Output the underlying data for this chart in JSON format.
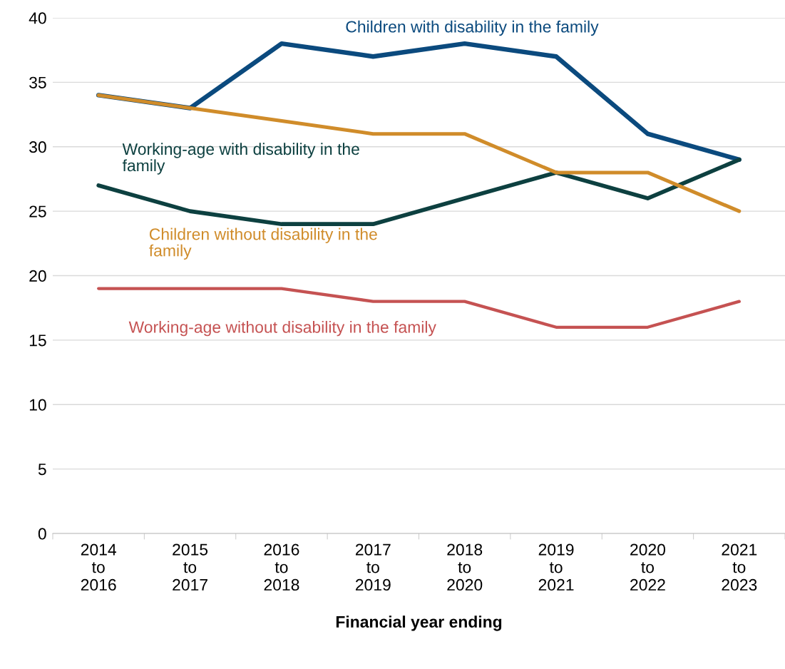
{
  "chart_data": {
    "type": "line",
    "xlabel": "Financial year ending",
    "categories": [
      "2014\nto\n2016",
      "2015\nto\n2017",
      "2016\nto\n2018",
      "2017\nto\n2019",
      "2018\nto\n2020",
      "2019\nto\n2021",
      "2020\nto\n2022",
      "2021\nto\n2023"
    ],
    "series": [
      {
        "name": "Children with disability in the family",
        "color": "#0b4a7e",
        "values": [
          34,
          33,
          38,
          37,
          38,
          37,
          31,
          29
        ]
      },
      {
        "name": "Working-age with disability in the family",
        "color": "#0d4040",
        "values": [
          27,
          25,
          24,
          24,
          26,
          28,
          26,
          29
        ]
      },
      {
        "name": "Children without disability in the family",
        "color": "#d08c2a",
        "values": [
          34,
          33,
          32,
          31,
          31,
          28,
          28,
          25
        ]
      },
      {
        "name": "Working-age without disability in the family",
        "color": "#c55252",
        "values": [
          19,
          19,
          19,
          18,
          18,
          16,
          16,
          18
        ]
      }
    ],
    "ylim": [
      0,
      40
    ],
    "yticks": [
      0,
      5,
      10,
      15,
      20,
      25,
      30,
      35,
      40
    ],
    "grid": "y",
    "legend": false,
    "marker": "none",
    "line_style": "solid"
  }
}
